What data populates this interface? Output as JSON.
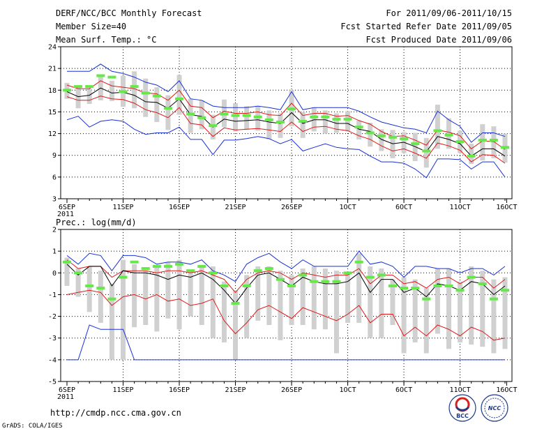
{
  "header": {
    "title": "DERF/NCC/BCC Monthly Forecast",
    "member_size": "Member Size=40",
    "variable": "Mean Surf. Temp.: °C",
    "forecast_period": "For 2011/09/06-2011/10/15",
    "started_refer": "Fcst Started Refer Date 2011/09/05",
    "produced": "Fcst Produced Date 2011/09/06"
  },
  "footer": {
    "url": "http://cmdp.ncc.cma.gov.cn",
    "grads": "GrADS: COLA/IGES",
    "logo_left_label": "BCC",
    "logo_right_label": "NCC"
  },
  "colors": {
    "box": "#d0d0d0",
    "median": "#66e84a",
    "mean": "#000000",
    "band": "#e01818",
    "extreme": "#1830d8"
  },
  "chart_data": [
    {
      "type": "box",
      "name": "temperature",
      "ylabel": "Mean Surf. Temp.: °C",
      "xlabels": [
        "6SEP",
        "11SEP",
        "16SEP",
        "21SEP",
        "26SEP",
        "1OCT",
        "6OCT",
        "11OCT",
        "16OCT"
      ],
      "xlabel_day": [
        0,
        5,
        10,
        15,
        20,
        25,
        30,
        35,
        40
      ],
      "year_label": "2011",
      "yticks": [
        "3",
        "6",
        "9",
        "12",
        "15",
        "18",
        "21",
        "24"
      ],
      "ytick_values": [
        3,
        6,
        9,
        12,
        15,
        18,
        21,
        24
      ],
      "ylim": [
        3,
        24
      ],
      "days": 40,
      "mean": [
        17.8,
        17.1,
        17.3,
        18.3,
        17.6,
        17.7,
        17.3,
        16.4,
        16.3,
        15.5,
        16.8,
        14.6,
        14.4,
        12.9,
        14.0,
        13.7,
        13.8,
        13.9,
        13.6,
        13.4,
        14.9,
        13.4,
        13.9,
        13.9,
        13.4,
        13.4,
        12.6,
        12.3,
        11.2,
        10.6,
        10.8,
        10.2,
        9.5,
        11.6,
        11.2,
        10.6,
        8.9,
        9.9,
        9.9,
        8.9
      ],
      "band_hi": [
        18.7,
        18.2,
        18.2,
        19.3,
        18.6,
        18.4,
        18.2,
        17.6,
        17.5,
        16.6,
        18.0,
        15.8,
        15.6,
        14.2,
        15.1,
        14.8,
        14.8,
        15.0,
        14.6,
        14.5,
        16.2,
        14.5,
        14.8,
        14.8,
        14.4,
        14.5,
        13.8,
        13.3,
        12.3,
        11.6,
        11.7,
        11.1,
        10.4,
        12.5,
        12.2,
        11.7,
        9.9,
        11.0,
        10.9,
        9.8
      ],
      "band_lo": [
        17.1,
        16.6,
        16.6,
        17.2,
        16.8,
        16.7,
        16.2,
        15.3,
        14.9,
        14.2,
        15.6,
        13.4,
        13.2,
        11.6,
        12.8,
        12.5,
        12.6,
        12.7,
        12.5,
        12.3,
        13.6,
        12.3,
        12.9,
        13.0,
        12.6,
        12.4,
        11.7,
        11.2,
        10.3,
        9.6,
        9.9,
        9.3,
        8.6,
        10.7,
        10.3,
        9.7,
        8.1,
        9.1,
        9.0,
        7.9
      ],
      "max": [
        20.6,
        20.6,
        20.6,
        21.6,
        20.6,
        20.3,
        19.8,
        19.1,
        18.7,
        17.8,
        19.3,
        16.8,
        16.6,
        15.8,
        15.6,
        15.6,
        15.6,
        15.8,
        15.6,
        15.3,
        17.8,
        15.3,
        15.6,
        15.6,
        15.6,
        15.6,
        15.1,
        14.3,
        13.6,
        13.2,
        12.8,
        12.6,
        12.1,
        15.1,
        13.9,
        13.0,
        10.8,
        12.1,
        12.1,
        11.6
      ],
      "min": [
        13.9,
        14.4,
        12.9,
        13.7,
        13.9,
        13.7,
        12.6,
        11.9,
        12.1,
        12.1,
        12.9,
        11.2,
        11.2,
        9.1,
        11.1,
        11.1,
        11.3,
        11.6,
        11.3,
        10.6,
        11.2,
        9.6,
        10.1,
        10.6,
        10.1,
        9.9,
        9.8,
        8.9,
        8.1,
        8.1,
        7.9,
        7.1,
        5.9,
        8.5,
        8.5,
        8.4,
        7.1,
        8.1,
        8.1,
        6.0
      ],
      "box_hi": [
        19.0,
        18.6,
        18.2,
        19.8,
        19.3,
        20.0,
        20.6,
        19.6,
        18.4,
        17.3,
        20.1,
        16.8,
        16.6,
        14.6,
        16.7,
        16.2,
        15.8,
        15.8,
        15.2,
        14.8,
        18.0,
        15.0,
        15.6,
        15.2,
        14.8,
        15.1,
        13.8,
        13.5,
        12.6,
        12.5,
        12.2,
        12.1,
        11.4,
        16.0,
        14.1,
        12.4,
        10.6,
        13.3,
        13.0,
        12.0
      ],
      "box_lo": [
        16.8,
        15.5,
        16.1,
        16.6,
        16.5,
        15.7,
        15.5,
        14.3,
        13.6,
        12.5,
        14.6,
        12.1,
        12.6,
        11.2,
        12.9,
        12.3,
        12.5,
        12.4,
        11.2,
        11.4,
        13.0,
        11.4,
        12.3,
        12.0,
        12.1,
        12.3,
        11.2,
        10.2,
        9.6,
        8.6,
        9.3,
        8.2,
        7.3,
        9.9,
        9.9,
        9.3,
        7.8,
        8.3,
        8.6,
        8.0
      ],
      "median": [
        18.0,
        18.5,
        18.5,
        20.0,
        19.8,
        17.8,
        18.5,
        17.6,
        17.2,
        15.5,
        16.8,
        14.7,
        14.2,
        13.1,
        14.7,
        14.5,
        14.5,
        14.3,
        13.9,
        13.6,
        15.4,
        13.7,
        14.3,
        14.3,
        14.0,
        14.0,
        12.9,
        12.1,
        11.7,
        11.5,
        11.3,
        10.6,
        9.6,
        12.4,
        11.8,
        10.9,
        8.9,
        11.1,
        11.1,
        10.1
      ]
    },
    {
      "type": "box",
      "name": "precipitation",
      "ylabel": "Prec.: log(mm/d)",
      "xlabels": [
        "6SEP",
        "11SEP",
        "16SEP",
        "21SEP",
        "26SEP",
        "1OCT",
        "6OCT",
        "11OCT",
        "16OCT"
      ],
      "xlabel_day": [
        0,
        5,
        10,
        15,
        20,
        25,
        30,
        35,
        40
      ],
      "year_label": "2011",
      "yticks": [
        "-5",
        "-4",
        "-3",
        "-2",
        "-1",
        "0",
        "1",
        "2"
      ],
      "ytick_values": [
        -5,
        -4,
        -3,
        -2,
        -1,
        0,
        1,
        2
      ],
      "ylim": [
        -5,
        2
      ],
      "days": 40,
      "mean": [
        0.4,
        -0.1,
        0.3,
        0.3,
        -0.6,
        0.1,
        0.0,
        0.0,
        -0.1,
        -0.3,
        -0.1,
        -0.2,
        0.0,
        -0.3,
        -0.8,
        -1.4,
        -0.7,
        -0.1,
        0.0,
        -0.3,
        -0.6,
        -0.2,
        -0.4,
        -0.5,
        -0.5,
        -0.4,
        0.0,
        -0.9,
        -0.3,
        -0.3,
        -0.9,
        -0.7,
        -1.1,
        -0.5,
        -0.6,
        -0.8,
        -0.4,
        -0.5,
        -1.0,
        -0.6
      ],
      "band_hi": [
        0.6,
        0.2,
        0.3,
        0.3,
        -0.2,
        0.1,
        0.1,
        0.1,
        0.0,
        0.1,
        0.1,
        0.0,
        0.1,
        -0.1,
        -0.3,
        -0.9,
        -0.3,
        0.0,
        0.1,
        0.0,
        -0.3,
        0.0,
        -0.1,
        -0.2,
        -0.1,
        -0.1,
        0.2,
        -0.5,
        -0.1,
        -0.1,
        -0.5,
        -0.4,
        -0.7,
        -0.3,
        -0.2,
        -0.5,
        -0.2,
        -0.2,
        -0.7,
        -0.3
      ],
      "band_lo": [
        -1.0,
        -0.9,
        -0.8,
        -0.9,
        -1.5,
        -1.1,
        -1.0,
        -1.2,
        -1.0,
        -1.3,
        -1.2,
        -1.5,
        -1.4,
        -1.2,
        -2.2,
        -2.8,
        -2.3,
        -1.7,
        -1.5,
        -1.8,
        -2.1,
        -1.6,
        -1.8,
        -2.0,
        -2.2,
        -1.9,
        -1.5,
        -2.3,
        -1.9,
        -1.9,
        -2.9,
        -2.5,
        -2.9,
        -2.4,
        -2.6,
        -2.9,
        -2.5,
        -2.7,
        -3.1,
        -3.0
      ],
      "max": [
        0.8,
        0.4,
        0.9,
        0.8,
        0.1,
        0.8,
        0.8,
        0.7,
        0.4,
        0.5,
        0.5,
        0.4,
        0.6,
        0.1,
        -0.1,
        -0.4,
        0.4,
        0.7,
        0.9,
        0.5,
        0.2,
        0.6,
        0.3,
        0.3,
        0.3,
        0.3,
        1.0,
        0.4,
        0.5,
        0.3,
        -0.2,
        0.3,
        0.3,
        0.2,
        0.2,
        0.0,
        0.2,
        0.2,
        -0.1,
        0.3
      ],
      "min": [
        -4.0,
        -4.0,
        -2.4,
        -2.6,
        -2.6,
        -2.6,
        -4.0,
        -4.0,
        -4.0,
        -4.0,
        -4.0,
        -4.0,
        -4.0,
        -4.0,
        -4.0,
        -4.0,
        -4.0,
        -4.0,
        -4.0,
        -4.0,
        -4.0,
        -4.0,
        -4.0,
        -4.0,
        -4.0,
        -4.0,
        -4.0,
        -4.0,
        -4.0,
        -4.0,
        -4.0,
        -4.0,
        -4.0,
        -4.0,
        -4.0,
        -4.0,
        -4.0,
        -4.0,
        -4.0,
        -4.0
      ],
      "box_hi": [
        0.7,
        0.2,
        0.3,
        0.1,
        -0.5,
        0.6,
        0.4,
        0.1,
        0.3,
        0.5,
        0.6,
        0.1,
        0.3,
        0.3,
        -0.4,
        -0.8,
        -0.1,
        0.3,
        0.3,
        0.1,
        -0.1,
        0.2,
        0.3,
        0.2,
        0.1,
        0.0,
        0.9,
        0.3,
        0.2,
        -0.3,
        -0.2,
        -0.3,
        -0.7,
        0.2,
        0.2,
        -0.4,
        0.3,
        0.1,
        -0.3,
        -0.2
      ],
      "box_lo": [
        -0.6,
        -1.1,
        -1.8,
        -2.3,
        -4.0,
        -4.0,
        -2.5,
        -2.4,
        -2.7,
        -2.1,
        -2.6,
        -2.0,
        -2.4,
        -3.0,
        -3.2,
        -4.0,
        -3.0,
        -2.2,
        -2.4,
        -3.1,
        -2.4,
        -2.4,
        -2.6,
        -2.6,
        -3.7,
        -2.3,
        -2.3,
        -3.0,
        -3.0,
        -2.4,
        -3.7,
        -3.2,
        -3.7,
        -2.8,
        -3.5,
        -3.2,
        -3.3,
        -3.4,
        -3.7,
        -3.5
      ],
      "median": [
        0.5,
        0.0,
        -0.6,
        -0.7,
        -1.2,
        -0.2,
        0.5,
        0.2,
        0.3,
        0.3,
        0.4,
        0.1,
        0.3,
        0.0,
        -0.6,
        -1.4,
        -0.6,
        0.1,
        0.2,
        -0.3,
        -0.6,
        -0.1,
        -0.4,
        -0.4,
        -0.4,
        0.0,
        0.5,
        -0.2,
        -0.1,
        -0.6,
        -0.7,
        -0.7,
        -1.2,
        -0.6,
        -0.6,
        -0.8,
        -0.2,
        -0.5,
        -1.2,
        -0.8
      ]
    }
  ]
}
